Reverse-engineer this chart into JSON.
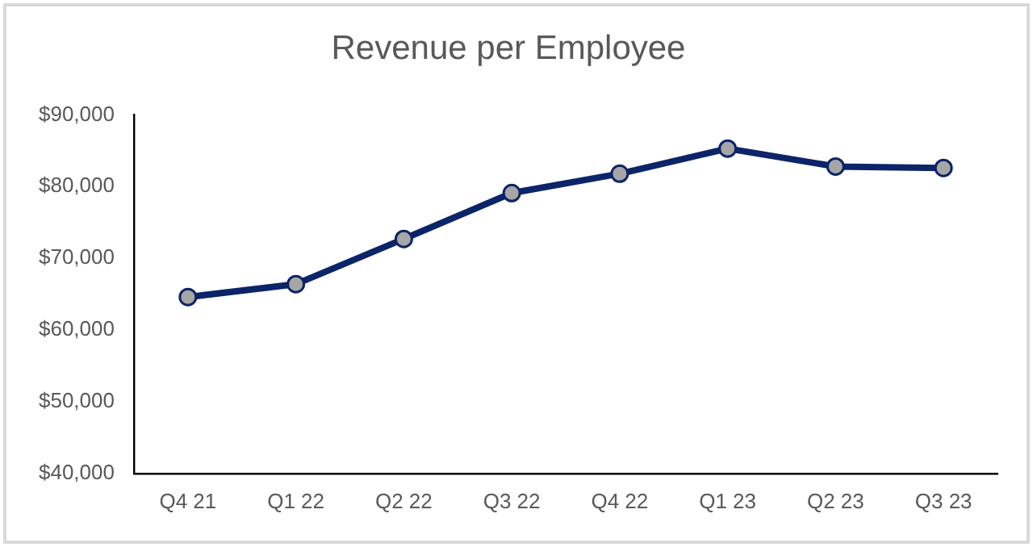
{
  "chart_data": {
    "type": "line",
    "title": "Revenue per Employee",
    "categories": [
      "Q4 21",
      "Q1 22",
      "Q2 22",
      "Q3 22",
      "Q4 22",
      "Q1 23",
      "Q2 23",
      "Q3 23"
    ],
    "series": [
      {
        "color": "#0c2468",
        "values": [
          64600,
          66400,
          72700,
          79100,
          81800,
          85300,
          82800,
          82600
        ]
      }
    ],
    "ylim": [
      40000,
      90000
    ],
    "yticks": [
      {
        "value": 40000,
        "label": "$40,000"
      },
      {
        "value": 50000,
        "label": "$50,000"
      },
      {
        "value": 60000,
        "label": "$60,000"
      },
      {
        "value": 70000,
        "label": "$70,000"
      },
      {
        "value": 80000,
        "label": "$80,000"
      },
      {
        "value": 90000,
        "label": "$90,000"
      }
    ],
    "grid": false,
    "legend": false,
    "marker": "circle",
    "line_style": "solid"
  }
}
